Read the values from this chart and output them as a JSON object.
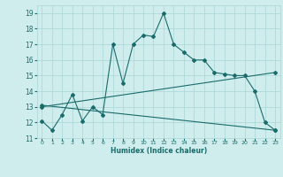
{
  "line1_x": [
    0,
    1,
    2,
    3,
    4,
    5,
    6,
    7,
    8,
    9,
    10,
    11,
    12,
    13,
    14,
    15,
    16,
    17,
    18,
    19,
    20,
    21,
    22,
    23
  ],
  "line1_y": [
    12.1,
    11.5,
    12.5,
    13.8,
    12.1,
    13.0,
    12.5,
    17.0,
    14.5,
    17.0,
    17.6,
    17.5,
    19.0,
    17.0,
    16.5,
    16.0,
    16.0,
    15.2,
    15.1,
    15.0,
    15.0,
    14.0,
    12.0,
    11.5
  ],
  "line2_x": [
    0,
    23
  ],
  "line2_y": [
    13.0,
    15.2
  ],
  "line3_x": [
    0,
    23
  ],
  "line3_y": [
    13.1,
    11.5
  ],
  "line_color": "#1a6b6b",
  "bg_color": "#d0eded",
  "grid_color": "#a8d5d5",
  "xlabel": "Humidex (Indice chaleur)",
  "xlabel_fontsize": 5.5,
  "xlim": [
    -0.5,
    23.5
  ],
  "ylim": [
    11,
    19.5
  ],
  "yticks": [
    11,
    12,
    13,
    14,
    15,
    16,
    17,
    18,
    19
  ],
  "xticks": [
    0,
    1,
    2,
    3,
    4,
    5,
    6,
    7,
    8,
    9,
    10,
    11,
    12,
    13,
    14,
    15,
    16,
    17,
    18,
    19,
    20,
    21,
    22,
    23
  ],
  "marker": "D",
  "markersize": 2.0,
  "linewidth": 0.8
}
